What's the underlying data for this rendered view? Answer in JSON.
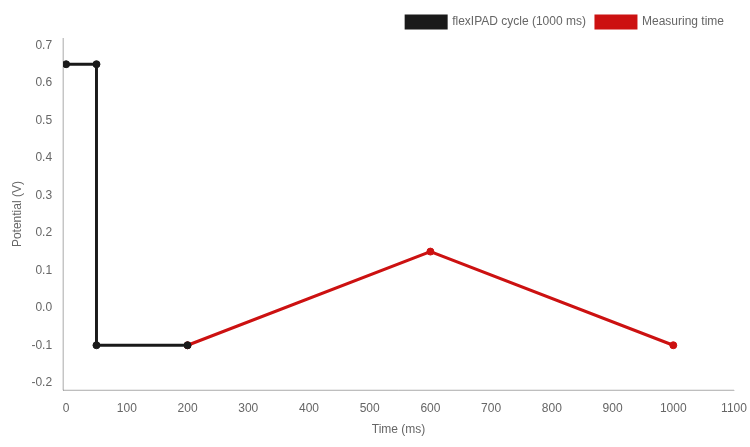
{
  "chart_data": {
    "type": "line",
    "x_label": "Time (ms)",
    "y_label": "Potential (V)",
    "series": [
      {
        "name": "flexIPAD cycle (1000 ms)",
        "color": "#1a1a1a",
        "marker": "o",
        "line_style": "solid",
        "x": [
          0,
          50,
          50,
          200
        ],
        "values": [
          0.65,
          0.65,
          -0.1,
          -0.1
        ]
      },
      {
        "name": "Measuring time",
        "color": "#cc1111",
        "marker": "o",
        "line_style": "solid",
        "x": [
          200,
          600,
          1000
        ],
        "values": [
          -0.1,
          0.15,
          -0.1
        ]
      }
    ],
    "xlim": [
      -5,
      1100
    ],
    "ylim": [
      -0.22,
      0.72
    ],
    "xticks": [
      0,
      100,
      200,
      300,
      400,
      500,
      600,
      700,
      800,
      900,
      1000,
      1100
    ],
    "yticks": [
      -0.2,
      -0.1,
      {
        "value": 0,
        "label": "0.0"
      },
      0.1,
      0.2,
      0.3,
      0.4,
      0.5,
      0.6,
      0.7
    ],
    "grid": false,
    "legend": "upper right"
  }
}
